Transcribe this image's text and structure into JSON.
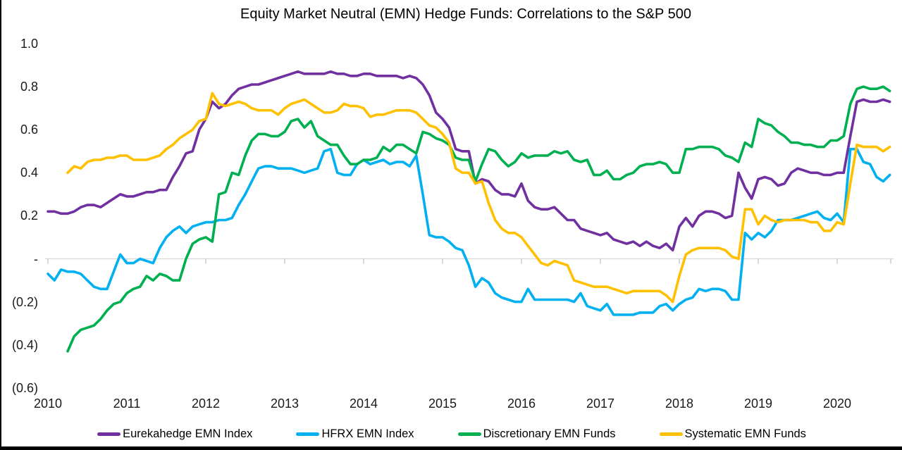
{
  "chart_data": {
    "type": "line",
    "title": "Equity Market Neutral (EMN) Hedge Funds: Correlations to the S&P 500",
    "subtitle": "",
    "x_frequency": "monthly",
    "x_start": "2010-01",
    "x_end": "2020-09",
    "x_axis": {
      "tick_labels": [
        "2010",
        "2011",
        "2012",
        "2013",
        "2014",
        "2015",
        "2016",
        "2017",
        "2018",
        "2019",
        "2020"
      ]
    },
    "y_axis": {
      "min": -0.6,
      "max": 1.0,
      "ticks": [
        {
          "label": "1.0",
          "value": 1.0
        },
        {
          "label": "0.8",
          "value": 0.8
        },
        {
          "label": "0.6",
          "value": 0.6
        },
        {
          "label": "0.4",
          "value": 0.4
        },
        {
          "label": "0.2",
          "value": 0.2
        },
        {
          "label": "-",
          "value": 0.0
        },
        {
          "label": "(0.2)",
          "value": -0.2
        },
        {
          "label": "(0.4)",
          "value": -0.4
        },
        {
          "label": "(0.6)",
          "value": -0.6
        }
      ]
    },
    "grid": {
      "horizontal": "zero-line-only",
      "gridline_color": "#D9D9D9",
      "tick_color": "#BFBFBF"
    },
    "legend_position": "bottom",
    "series": [
      {
        "name": "Eurekahedge EMN Index",
        "color": "#7030A0",
        "values": [
          0.22,
          0.22,
          0.21,
          0.21,
          0.22,
          0.24,
          0.25,
          0.25,
          0.24,
          0.26,
          0.28,
          0.3,
          0.29,
          0.29,
          0.3,
          0.31,
          0.31,
          0.32,
          0.32,
          0.38,
          0.43,
          0.49,
          0.5,
          0.6,
          0.65,
          0.73,
          0.7,
          0.72,
          0.76,
          0.79,
          0.8,
          0.81,
          0.81,
          0.82,
          0.83,
          0.84,
          0.85,
          0.86,
          0.87,
          0.86,
          0.86,
          0.86,
          0.86,
          0.87,
          0.86,
          0.86,
          0.85,
          0.85,
          0.86,
          0.86,
          0.85,
          0.85,
          0.85,
          0.85,
          0.84,
          0.85,
          0.84,
          0.81,
          0.76,
          0.68,
          0.65,
          0.61,
          0.51,
          0.5,
          0.5,
          0.35,
          0.37,
          0.36,
          0.32,
          0.3,
          0.3,
          0.29,
          0.35,
          0.27,
          0.24,
          0.23,
          0.23,
          0.24,
          0.21,
          0.18,
          0.18,
          0.14,
          0.13,
          0.12,
          0.11,
          0.12,
          0.09,
          0.08,
          0.07,
          0.08,
          0.06,
          0.08,
          0.06,
          0.05,
          0.07,
          0.04,
          0.15,
          0.19,
          0.15,
          0.2,
          0.22,
          0.22,
          0.21,
          0.19,
          0.2,
          0.4,
          0.33,
          0.28,
          0.37,
          0.38,
          0.37,
          0.34,
          0.35,
          0.4,
          0.42,
          0.41,
          0.4,
          0.4,
          0.39,
          0.39,
          0.4,
          0.4,
          0.57,
          0.73,
          0.74,
          0.73,
          0.73,
          0.74,
          0.73
        ]
      },
      {
        "name": "HFRX EMN Index",
        "color": "#00B0F0",
        "values": [
          -0.07,
          -0.1,
          -0.05,
          -0.06,
          -0.06,
          -0.07,
          -0.1,
          -0.13,
          -0.14,
          -0.14,
          -0.06,
          0.02,
          -0.02,
          -0.02,
          0.0,
          -0.01,
          -0.02,
          0.05,
          0.1,
          0.13,
          0.15,
          0.12,
          0.15,
          0.16,
          0.17,
          0.17,
          0.18,
          0.18,
          0.19,
          0.25,
          0.3,
          0.36,
          0.42,
          0.43,
          0.43,
          0.42,
          0.42,
          0.42,
          0.41,
          0.4,
          0.41,
          0.42,
          0.5,
          0.51,
          0.4,
          0.39,
          0.39,
          0.44,
          0.46,
          0.44,
          0.45,
          0.46,
          0.44,
          0.45,
          0.45,
          0.43,
          0.48,
          0.3,
          0.11,
          0.1,
          0.1,
          0.08,
          0.05,
          0.04,
          -0.03,
          -0.13,
          -0.09,
          -0.11,
          -0.16,
          -0.18,
          -0.19,
          -0.2,
          -0.2,
          -0.14,
          -0.19,
          -0.19,
          -0.19,
          -0.19,
          -0.19,
          -0.19,
          -0.2,
          -0.16,
          -0.22,
          -0.23,
          -0.24,
          -0.21,
          -0.26,
          -0.26,
          -0.26,
          -0.26,
          -0.25,
          -0.25,
          -0.25,
          -0.22,
          -0.21,
          -0.24,
          -0.21,
          -0.19,
          -0.18,
          -0.14,
          -0.15,
          -0.14,
          -0.14,
          -0.15,
          -0.19,
          -0.19,
          0.12,
          0.09,
          0.12,
          0.1,
          0.13,
          0.18,
          0.18,
          0.18,
          0.19,
          0.2,
          0.21,
          0.22,
          0.19,
          0.18,
          0.21,
          0.17,
          0.51,
          0.51,
          0.45,
          0.44,
          0.38,
          0.36,
          0.39
        ]
      },
      {
        "name": "Discretionary EMN Funds",
        "color": "#00B050",
        "values": [
          null,
          null,
          null,
          -0.43,
          -0.36,
          -0.33,
          -0.32,
          -0.31,
          -0.28,
          -0.24,
          -0.21,
          -0.2,
          -0.16,
          -0.14,
          -0.13,
          -0.08,
          -0.1,
          -0.07,
          -0.08,
          -0.1,
          -0.1,
          0.0,
          0.07,
          0.09,
          0.1,
          0.08,
          0.3,
          0.31,
          0.4,
          0.39,
          0.48,
          0.55,
          0.58,
          0.58,
          0.57,
          0.57,
          0.59,
          0.64,
          0.65,
          0.61,
          0.64,
          0.57,
          0.55,
          0.53,
          0.53,
          0.48,
          0.44,
          0.44,
          0.46,
          0.46,
          0.47,
          0.52,
          0.5,
          0.53,
          0.53,
          0.51,
          0.49,
          0.59,
          0.58,
          0.56,
          0.55,
          0.53,
          0.47,
          0.46,
          0.46,
          0.36,
          0.44,
          0.51,
          0.5,
          0.46,
          0.43,
          0.45,
          0.49,
          0.47,
          0.48,
          0.48,
          0.48,
          0.5,
          0.49,
          0.5,
          0.46,
          0.45,
          0.46,
          0.39,
          0.39,
          0.41,
          0.37,
          0.37,
          0.39,
          0.4,
          0.43,
          0.44,
          0.44,
          0.45,
          0.44,
          0.4,
          0.4,
          0.51,
          0.51,
          0.52,
          0.52,
          0.52,
          0.51,
          0.48,
          0.47,
          0.45,
          0.54,
          0.52,
          0.65,
          0.63,
          0.62,
          0.59,
          0.57,
          0.54,
          0.54,
          0.53,
          0.53,
          0.52,
          0.52,
          0.55,
          0.55,
          0.57,
          0.72,
          0.79,
          0.8,
          0.79,
          0.79,
          0.8,
          0.78
        ]
      },
      {
        "name": "Systematic EMN Funds",
        "color": "#FFC000",
        "values": [
          null,
          null,
          null,
          0.4,
          0.43,
          0.42,
          0.45,
          0.46,
          0.46,
          0.47,
          0.47,
          0.48,
          0.48,
          0.46,
          0.46,
          0.46,
          0.47,
          0.48,
          0.51,
          0.53,
          0.56,
          0.58,
          0.6,
          0.64,
          0.65,
          0.77,
          0.72,
          0.71,
          0.72,
          0.73,
          0.72,
          0.7,
          0.69,
          0.69,
          0.69,
          0.67,
          0.7,
          0.72,
          0.73,
          0.74,
          0.72,
          0.7,
          0.68,
          0.68,
          0.69,
          0.72,
          0.71,
          0.71,
          0.7,
          0.66,
          0.67,
          0.67,
          0.68,
          0.69,
          0.69,
          0.69,
          0.68,
          0.65,
          0.62,
          0.61,
          0.58,
          0.54,
          0.42,
          0.4,
          0.4,
          0.35,
          0.36,
          0.26,
          0.18,
          0.14,
          0.12,
          0.12,
          0.1,
          0.06,
          0.02,
          -0.02,
          -0.03,
          -0.01,
          -0.02,
          -0.03,
          -0.1,
          -0.11,
          -0.12,
          -0.13,
          -0.13,
          -0.13,
          -0.14,
          -0.15,
          -0.16,
          -0.15,
          -0.15,
          -0.15,
          -0.15,
          -0.15,
          -0.17,
          -0.2,
          -0.08,
          0.02,
          0.04,
          0.05,
          0.05,
          0.05,
          0.05,
          0.04,
          0.01,
          0.0,
          0.23,
          0.23,
          0.16,
          0.2,
          0.18,
          0.17,
          0.18,
          0.18,
          0.18,
          0.18,
          0.17,
          0.17,
          0.13,
          0.13,
          0.17,
          0.16,
          0.35,
          0.53,
          0.52,
          0.52,
          0.52,
          0.5,
          0.52
        ]
      }
    ]
  }
}
